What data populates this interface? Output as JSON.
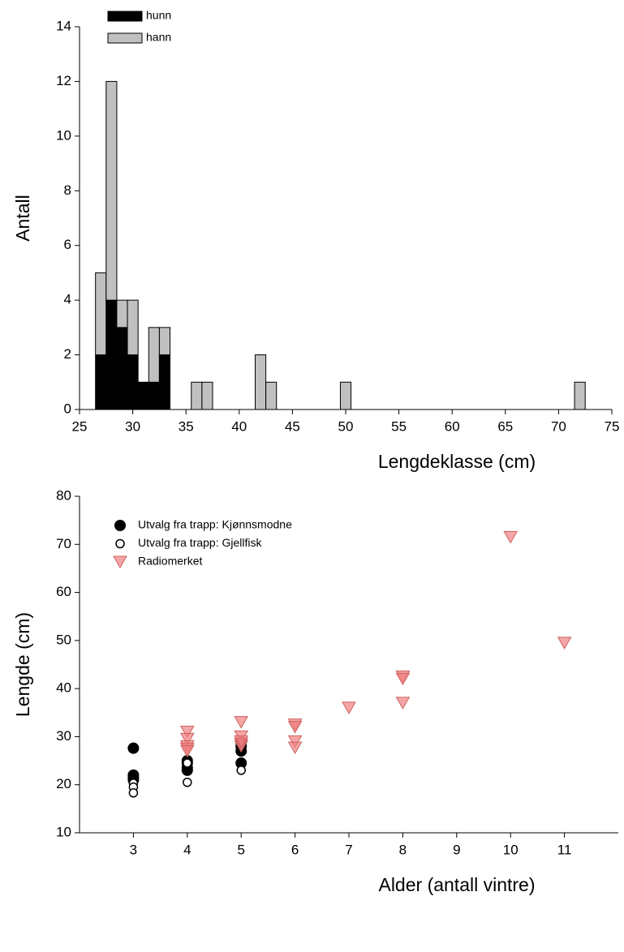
{
  "chart_data": [
    {
      "type": "bar",
      "stacked": true,
      "x": [
        27,
        28,
        29,
        30,
        31,
        32,
        33,
        36,
        37,
        42,
        43,
        50,
        72
      ],
      "series": [
        {
          "name": "hunn",
          "color": "#000000",
          "values": [
            2,
            4,
            3,
            2,
            1,
            1,
            2,
            0,
            0,
            0,
            0,
            0,
            0
          ]
        },
        {
          "name": "hann",
          "color": "#c0c0c0",
          "values": [
            3,
            8,
            1,
            2,
            0,
            2,
            1,
            1,
            1,
            2,
            1,
            1,
            1
          ]
        }
      ],
      "xlabel": "Lengdeklasse (cm)",
      "ylabel": "Antall",
      "xlim": [
        25,
        75
      ],
      "xticks": [
        25,
        30,
        35,
        40,
        45,
        50,
        55,
        60,
        65,
        70,
        75
      ],
      "ylim": [
        0,
        14
      ],
      "yticks": [
        0,
        2,
        4,
        6,
        8,
        10,
        12,
        14
      ],
      "legend": "upper-left"
    },
    {
      "type": "scatter",
      "series": [
        {
          "name": "Utvalg fra trapp: Kjønnsmodne",
          "color": "#000000",
          "marker": "circle",
          "x": [
            3,
            3,
            3,
            3,
            4,
            4,
            4,
            4,
            5,
            5,
            5,
            5
          ],
          "values": [
            27.6,
            22,
            21.5,
            21,
            25,
            24.5,
            23.5,
            23,
            28.8,
            28,
            27,
            24.5
          ]
        },
        {
          "name": "Utvalg fra trapp: Gjellfisk",
          "color": "#ffffff",
          "marker": "open-circle",
          "x": [
            3,
            3,
            3,
            4,
            4,
            5
          ],
          "values": [
            20.3,
            19.5,
            18.3,
            24.5,
            20.5,
            23
          ]
        },
        {
          "name": "Radiomerket",
          "color": "#f08080",
          "marker": "triangle-down",
          "x": [
            4,
            4,
            4,
            4,
            4,
            5,
            5,
            5,
            5,
            5,
            6,
            6,
            6,
            6,
            7,
            8,
            8,
            8,
            10,
            11
          ],
          "values": [
            31,
            29.5,
            28,
            27.5,
            27,
            33,
            30,
            28.5,
            28,
            29,
            32.5,
            32,
            29,
            27.7,
            36,
            42.5,
            42,
            37,
            71.5,
            49.5
          ]
        }
      ],
      "xlabel": "Alder (antall vintre)",
      "ylabel": "Lengde (cm)",
      "xlim": [
        2,
        12
      ],
      "xticks": [
        3,
        4,
        5,
        6,
        7,
        8,
        9,
        10,
        11
      ],
      "ylim": [
        10,
        80
      ],
      "yticks": [
        10,
        20,
        30,
        40,
        50,
        60,
        70,
        80
      ],
      "legend": "upper-left"
    }
  ]
}
